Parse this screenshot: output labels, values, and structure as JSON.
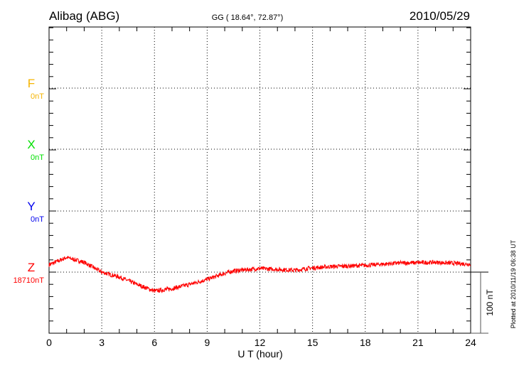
{
  "header": {
    "station": "Alibag (ABG)",
    "coords": "GG ( 18.64°,  72.87°)",
    "date": "2010/05/29"
  },
  "plotted_note": "Plotted at 2010/11/19 06:38 UT",
  "scale_label": "100 nT",
  "colors": {
    "F": "#f5b400",
    "X": "#00e000",
    "Y": "#0000ee",
    "Z": "#ff0000"
  },
  "chart_data": {
    "type": "line",
    "title": "Alibag (ABG) 2010/05/29",
    "xlabel": "U T (hour)",
    "xlim": [
      0,
      24
    ],
    "xticks": [
      "0",
      "3",
      "6",
      "9",
      "12",
      "15",
      "18",
      "21",
      "24"
    ],
    "channel_spacing_nT": 100,
    "grid": true,
    "channels": [
      {
        "name": "F",
        "baseline_label": "0nT",
        "values": []
      },
      {
        "name": "X",
        "baseline_label": "0nT",
        "values": []
      },
      {
        "name": "Y",
        "baseline_label": "0nT",
        "values": []
      },
      {
        "name": "Z",
        "baseline_label": "18710nT",
        "hours": [
          0,
          0.5,
          1,
          1.5,
          2,
          3,
          4,
          5,
          6,
          7,
          8,
          9,
          10,
          10.5,
          12,
          14,
          15,
          16,
          18,
          20,
          22,
          24
        ],
        "values": [
          12,
          18,
          24,
          20,
          16,
          0,
          -8,
          -20,
          -31,
          -27,
          -20,
          -12,
          -2,
          2,
          6,
          3,
          7,
          9,
          11,
          15,
          16,
          13
        ]
      }
    ]
  }
}
